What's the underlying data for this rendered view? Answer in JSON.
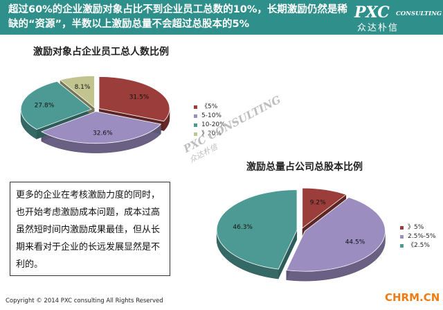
{
  "header": {
    "title": "超过60%的企业激励对象占比不到企业员工总数的10%，长期激励仍然是稀缺的“资源”，半数以上激励总量不会超过总股本的5%",
    "logo_main": "PXC",
    "logo_sub": "CONSULTING",
    "logo_cn": "众达朴信"
  },
  "text_box": "更多的企业在考核激励力度的同时，也开始考虑激励成本问题，成本过高虽然短时间内激励成果最佳，但从长期来看对于企业的长远发展显然是不利的。",
  "watermark": {
    "main": "PXC CONSULTING",
    "cn": "众达朴信"
  },
  "footer": "Copyright © 2014 PXC consulting All Rights Reserved",
  "site": "CHRM.CN",
  "chart_data": [
    {
      "type": "pie",
      "title": "激励对象占企业员工总人数比例",
      "categories": [
        "《5%",
        "5-10%",
        "10-20%",
        "》20%"
      ],
      "values": [
        31.5,
        32.6,
        27.8,
        8.1
      ],
      "data_labels": [
        "31.5%",
        "32.6%",
        "27.8%",
        "8.1%"
      ],
      "colors": [
        "#9b3d3b",
        "#9c8dc1",
        "#4d9a95",
        "#c2c48f"
      ],
      "legend_position": "right",
      "style": "3d-exploded"
    },
    {
      "type": "pie",
      "title": "激励总量占公司总股本比例",
      "categories": [
        "》5%",
        "2.5%-5%",
        "《2.5%"
      ],
      "values": [
        9.2,
        44.5,
        46.3
      ],
      "data_labels": [
        "9.2%",
        "44.5%",
        "46.3%"
      ],
      "colors": [
        "#9b3d3b",
        "#9c8dc1",
        "#4d9a95"
      ],
      "legend_position": "right",
      "style": "3d-exploded"
    }
  ]
}
